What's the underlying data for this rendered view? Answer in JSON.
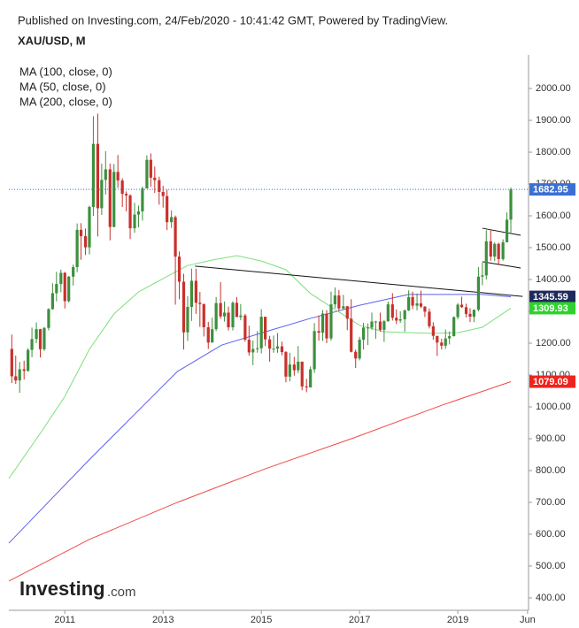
{
  "chart_data": {
    "type": "candlestick",
    "header": "Published on Investing.com, 24/Feb/2020 - 10:41:42 GMT, Powered by TradingView.",
    "title": "XAU/USD, M",
    "logo_main": "Investing",
    "logo_suffix": ".com",
    "up_color": "#3d8f3d",
    "down_color": "#c9302c",
    "price_line_color": "#3b6fd4",
    "xlim": [
      2009.86,
      2020.44
    ],
    "ylim": [
      361,
      2089
    ],
    "xticks": [
      2011,
      2013,
      2015,
      2017,
      2019,
      {
        "value": 2020.42,
        "label": "Jun"
      }
    ],
    "yticks": [
      {
        "value": 400,
        "label": "400.00"
      },
      {
        "value": 500,
        "label": "500.00"
      },
      {
        "value": 600,
        "label": "600.00"
      },
      {
        "value": 700,
        "label": "700.00"
      },
      {
        "value": 800,
        "label": "800.00"
      },
      {
        "value": 900,
        "label": "900.00"
      },
      {
        "value": 1000,
        "label": "1000.00"
      },
      {
        "value": 1100,
        "label": "1100.00"
      },
      {
        "value": 1200,
        "label": "1200.00"
      },
      {
        "value": 1300,
        "label": "1300.00"
      },
      {
        "value": 1400,
        "label": "1400.00"
      },
      {
        "value": 1500,
        "label": "1500.00"
      },
      {
        "value": 1600,
        "label": "1600.00"
      },
      {
        "value": 1700,
        "label": "1700.00"
      },
      {
        "value": 1800,
        "label": "1800.00"
      },
      {
        "value": 1900,
        "label": "1900.00"
      },
      {
        "value": 2000,
        "label": "2000.00"
      }
    ],
    "x": [
      2009.92,
      2010.0,
      2010.08,
      2010.17,
      2010.25,
      2010.33,
      2010.42,
      2010.5,
      2010.58,
      2010.67,
      2010.75,
      2010.83,
      2010.92,
      2011.0,
      2011.08,
      2011.17,
      2011.25,
      2011.33,
      2011.42,
      2011.5,
      2011.58,
      2011.67,
      2011.75,
      2011.83,
      2011.92,
      2012.0,
      2012.08,
      2012.17,
      2012.25,
      2012.33,
      2012.42,
      2012.5,
      2012.58,
      2012.67,
      2012.75,
      2012.83,
      2012.92,
      2013.0,
      2013.08,
      2013.17,
      2013.25,
      2013.33,
      2013.42,
      2013.5,
      2013.58,
      2013.67,
      2013.75,
      2013.83,
      2013.92,
      2014.0,
      2014.08,
      2014.17,
      2014.25,
      2014.33,
      2014.42,
      2014.5,
      2014.58,
      2014.67,
      2014.75,
      2014.83,
      2014.92,
      2015.0,
      2015.08,
      2015.17,
      2015.25,
      2015.33,
      2015.42,
      2015.5,
      2015.58,
      2015.67,
      2015.75,
      2015.83,
      2015.92,
      2016.0,
      2016.08,
      2016.17,
      2016.25,
      2016.33,
      2016.42,
      2016.5,
      2016.58,
      2016.67,
      2016.75,
      2016.83,
      2016.92,
      2017.0,
      2017.08,
      2017.17,
      2017.25,
      2017.33,
      2017.42,
      2017.5,
      2017.58,
      2017.67,
      2017.75,
      2017.83,
      2017.92,
      2018.0,
      2018.08,
      2018.17,
      2018.25,
      2018.33,
      2018.42,
      2018.5,
      2018.58,
      2018.67,
      2018.75,
      2018.83,
      2018.92,
      2019.0,
      2019.08,
      2019.17,
      2019.25,
      2019.33,
      2019.42,
      2019.5,
      2019.58,
      2019.67,
      2019.75,
      2019.83,
      2019.92,
      2020.0,
      2020.08
    ],
    "ohlc": [
      [
        1182,
        1227,
        1075,
        1096
      ],
      [
        1096,
        1161,
        1072,
        1083
      ],
      [
        1083,
        1141,
        1044,
        1118
      ],
      [
        1118,
        1145,
        1086,
        1113
      ],
      [
        1113,
        1184,
        1110,
        1179
      ],
      [
        1179,
        1249,
        1156,
        1213
      ],
      [
        1213,
        1265,
        1200,
        1244
      ],
      [
        1244,
        1245,
        1155,
        1181
      ],
      [
        1181,
        1251,
        1176,
        1248
      ],
      [
        1248,
        1310,
        1240,
        1307
      ],
      [
        1307,
        1388,
        1305,
        1357
      ],
      [
        1357,
        1424,
        1331,
        1386
      ],
      [
        1386,
        1431,
        1360,
        1421
      ],
      [
        1421,
        1424,
        1309,
        1332
      ],
      [
        1332,
        1411,
        1328,
        1409
      ],
      [
        1409,
        1447,
        1381,
        1439
      ],
      [
        1439,
        1576,
        1423,
        1556
      ],
      [
        1556,
        1577,
        1462,
        1536
      ],
      [
        1536,
        1560,
        1477,
        1501
      ],
      [
        1501,
        1632,
        1479,
        1628
      ],
      [
        1628,
        1913,
        1600,
        1826
      ],
      [
        1826,
        1921,
        1535,
        1624
      ],
      [
        1624,
        1764,
        1603,
        1713
      ],
      [
        1713,
        1803,
        1667,
        1746
      ],
      [
        1746,
        1764,
        1523,
        1565
      ],
      [
        1565,
        1763,
        1564,
        1738
      ],
      [
        1738,
        1791,
        1688,
        1711
      ],
      [
        1711,
        1718,
        1628,
        1669
      ],
      [
        1669,
        1677,
        1614,
        1664
      ],
      [
        1664,
        1668,
        1527,
        1561
      ],
      [
        1561,
        1641,
        1547,
        1604
      ],
      [
        1604,
        1632,
        1564,
        1614
      ],
      [
        1614,
        1692,
        1585,
        1686
      ],
      [
        1686,
        1790,
        1686,
        1776
      ],
      [
        1776,
        1796,
        1691,
        1720
      ],
      [
        1720,
        1755,
        1672,
        1712
      ],
      [
        1712,
        1723,
        1635,
        1675
      ],
      [
        1675,
        1694,
        1626,
        1662
      ],
      [
        1662,
        1682,
        1555,
        1580
      ],
      [
        1580,
        1617,
        1562,
        1596
      ],
      [
        1596,
        1601,
        1321,
        1472
      ],
      [
        1472,
        1488,
        1338,
        1393
      ],
      [
        1393,
        1418,
        1180,
        1234
      ],
      [
        1234,
        1348,
        1207,
        1314
      ],
      [
        1314,
        1434,
        1270,
        1396
      ],
      [
        1396,
        1434,
        1292,
        1327
      ],
      [
        1327,
        1361,
        1251,
        1323
      ],
      [
        1323,
        1324,
        1221,
        1250
      ],
      [
        1250,
        1267,
        1182,
        1202
      ],
      [
        1202,
        1280,
        1202,
        1244
      ],
      [
        1244,
        1345,
        1238,
        1326
      ],
      [
        1326,
        1392,
        1277,
        1284
      ],
      [
        1284,
        1331,
        1268,
        1296
      ],
      [
        1296,
        1315,
        1240,
        1250
      ],
      [
        1250,
        1332,
        1240,
        1327
      ],
      [
        1327,
        1345,
        1282,
        1282
      ],
      [
        1282,
        1323,
        1272,
        1287
      ],
      [
        1287,
        1292,
        1205,
        1211
      ],
      [
        1211,
        1255,
        1161,
        1171
      ],
      [
        1171,
        1208,
        1131,
        1182
      ],
      [
        1182,
        1238,
        1170,
        1184
      ],
      [
        1184,
        1307,
        1168,
        1283
      ],
      [
        1283,
        1283,
        1191,
        1212
      ],
      [
        1212,
        1223,
        1142,
        1183
      ],
      [
        1183,
        1224,
        1170,
        1183
      ],
      [
        1183,
        1232,
        1170,
        1190
      ],
      [
        1190,
        1205,
        1162,
        1172
      ],
      [
        1172,
        1175,
        1077,
        1095
      ],
      [
        1095,
        1170,
        1080,
        1133
      ],
      [
        1133,
        1157,
        1098,
        1115
      ],
      [
        1115,
        1191,
        1106,
        1142
      ],
      [
        1142,
        1142,
        1052,
        1064
      ],
      [
        1064,
        1088,
        1046,
        1061
      ],
      [
        1061,
        1127,
        1061,
        1118
      ],
      [
        1118,
        1263,
        1107,
        1238
      ],
      [
        1238,
        1287,
        1208,
        1233
      ],
      [
        1233,
        1304,
        1207,
        1293
      ],
      [
        1293,
        1304,
        1200,
        1215
      ],
      [
        1215,
        1362,
        1208,
        1322
      ],
      [
        1322,
        1375,
        1310,
        1350
      ],
      [
        1350,
        1367,
        1302,
        1309
      ],
      [
        1309,
        1352,
        1304,
        1316
      ],
      [
        1316,
        1317,
        1241,
        1277
      ],
      [
        1277,
        1338,
        1171,
        1173
      ],
      [
        1173,
        1180,
        1122,
        1152
      ],
      [
        1152,
        1220,
        1146,
        1211
      ],
      [
        1211,
        1264,
        1180,
        1249
      ],
      [
        1249,
        1262,
        1194,
        1249
      ],
      [
        1249,
        1296,
        1242,
        1268
      ],
      [
        1268,
        1270,
        1214,
        1268
      ],
      [
        1268,
        1296,
        1236,
        1242
      ],
      [
        1242,
        1272,
        1204,
        1269
      ],
      [
        1269,
        1331,
        1267,
        1322
      ],
      [
        1322,
        1357,
        1271,
        1280
      ],
      [
        1280,
        1306,
        1260,
        1271
      ],
      [
        1271,
        1300,
        1264,
        1275
      ],
      [
        1275,
        1306,
        1236,
        1303
      ],
      [
        1303,
        1366,
        1301,
        1345
      ],
      [
        1345,
        1362,
        1307,
        1318
      ],
      [
        1318,
        1356,
        1303,
        1325
      ],
      [
        1325,
        1365,
        1310,
        1315
      ],
      [
        1315,
        1316,
        1282,
        1299
      ],
      [
        1299,
        1309,
        1246,
        1253
      ],
      [
        1253,
        1266,
        1211,
        1223
      ],
      [
        1223,
        1223,
        1160,
        1202
      ],
      [
        1202,
        1214,
        1180,
        1192
      ],
      [
        1192,
        1243,
        1182,
        1215
      ],
      [
        1215,
        1237,
        1196,
        1222
      ],
      [
        1222,
        1284,
        1221,
        1282
      ],
      [
        1282,
        1326,
        1275,
        1321
      ],
      [
        1321,
        1346,
        1311,
        1313
      ],
      [
        1313,
        1324,
        1281,
        1292
      ],
      [
        1292,
        1310,
        1266,
        1283
      ],
      [
        1283,
        1306,
        1266,
        1305
      ],
      [
        1305,
        1439,
        1300,
        1409
      ],
      [
        1409,
        1453,
        1382,
        1413
      ],
      [
        1413,
        1555,
        1400,
        1520
      ],
      [
        1520,
        1557,
        1459,
        1472
      ],
      [
        1472,
        1517,
        1458,
        1512
      ],
      [
        1512,
        1516,
        1445,
        1464
      ],
      [
        1464,
        1526,
        1459,
        1517
      ],
      [
        1517,
        1611,
        1517,
        1588
      ],
      [
        1588,
        1689,
        1547,
        1682.95
      ]
    ],
    "series": [
      {
        "name": "MA (100, close, 0)",
        "color": "#5d5ff0",
        "label_color": "#1f2a5c",
        "x": [
          2009.86,
          2010.59,
          2011.49,
          2012.39,
          2013.29,
          2014.19,
          2015.09,
          2016.0,
          2017.0,
          2018.0,
          2018.5,
          2019.0,
          2019.5,
          2020.08
        ],
        "values": [
          572,
          689,
          833,
          972,
          1111,
          1194,
          1236,
          1278,
          1319,
          1353,
          1353,
          1353,
          1353,
          1345.59
        ]
      },
      {
        "name": "MA (50, close, 0)",
        "color": "#7be07b",
        "label_color": "#2fd12f",
        "x": [
          2009.86,
          2010.5,
          2011.0,
          2011.5,
          2012.0,
          2012.5,
          2013.0,
          2013.5,
          2014.0,
          2014.5,
          2015.0,
          2015.5,
          2016.0,
          2016.5,
          2017.0,
          2017.5,
          2018.0,
          2018.5,
          2019.0,
          2019.5,
          2020.08
        ],
        "values": [
          775,
          917,
          1033,
          1181,
          1292,
          1361,
          1403,
          1444,
          1461,
          1475,
          1458,
          1431,
          1356,
          1306,
          1256,
          1236,
          1233,
          1231,
          1233,
          1250,
          1309.93
        ]
      },
      {
        "name": "MA (200, close, 0)",
        "color": "#f04a4a",
        "label_color": "#f0221c",
        "x": [
          2009.86,
          2011.49,
          2013.29,
          2015.09,
          2016.89,
          2018.69,
          2020.08
        ],
        "values": [
          453,
          583,
          700,
          806,
          903,
          1006,
          1079.09
        ]
      }
    ],
    "trendlines": [
      {
        "x": [
          2013.65,
          2020.32
        ],
        "values": [
          1442,
          1347
        ]
      },
      {
        "x": [
          2019.5,
          2020.28
        ],
        "values": [
          1561,
          1539
        ]
      },
      {
        "x": [
          2019.5,
          2020.28
        ],
        "values": [
          1456,
          1436
        ]
      }
    ]
  }
}
